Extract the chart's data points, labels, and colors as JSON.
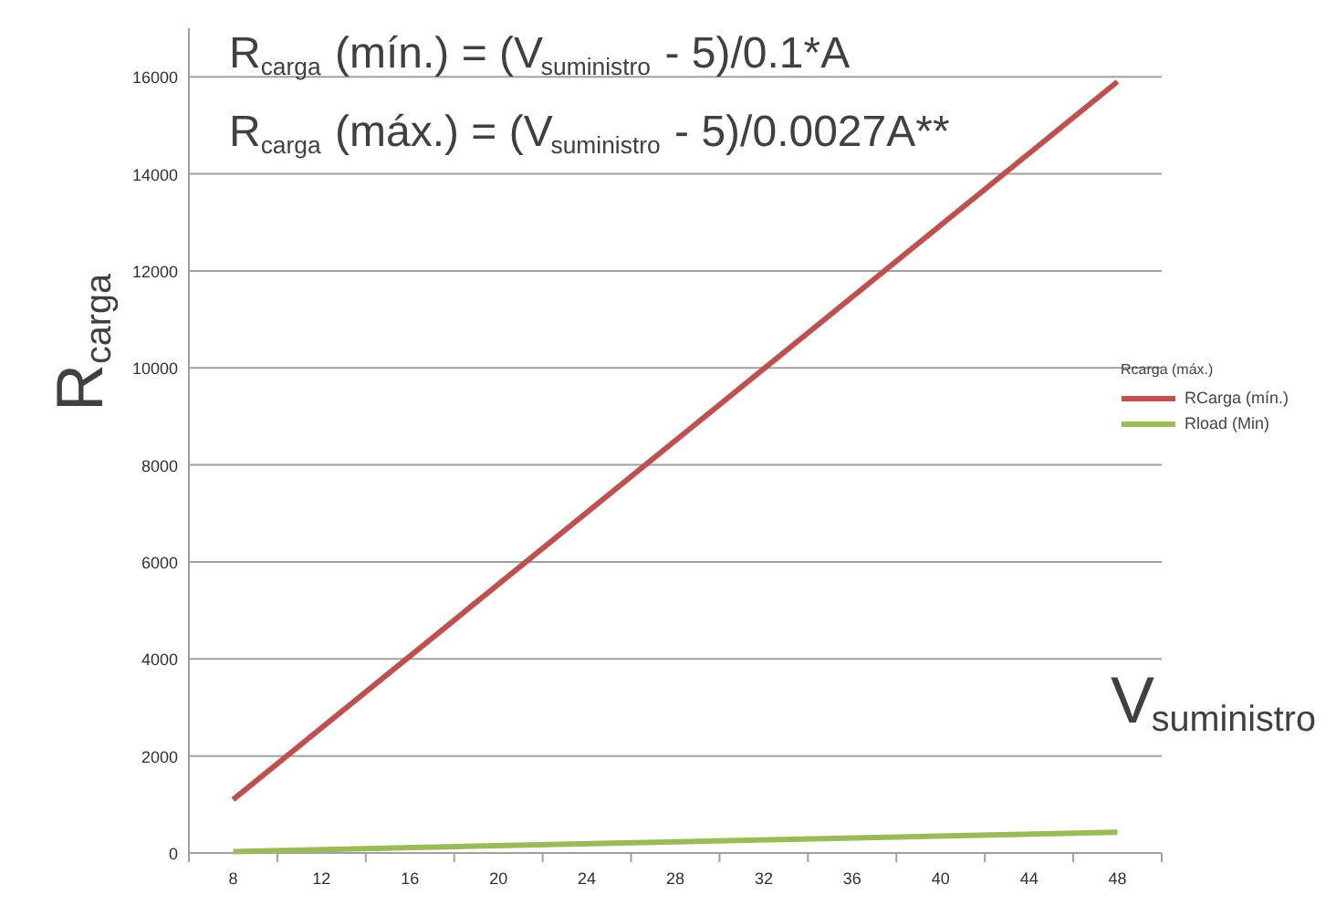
{
  "chart_data": {
    "type": "line",
    "annotations": [
      "R$_{carga}$ (mín.) = (V$_{suministro}$ - 5)/0.1*A",
      "R$_{carga}$ (máx.) = (V$_{suministro}$ - 5)/0.0027A**"
    ],
    "xlabel": "V$_{suministro}$",
    "ylabel": "R$_{carga}$",
    "legend_title": "Rcarga (máx.)",
    "series": [
      {
        "name": "RCarga (mín.)",
        "color": "#c0504d",
        "values": [
          1100,
          15900
        ]
      },
      {
        "name": "Rload (Min)",
        "color": "#9bbb59",
        "values": [
          30,
          430
        ]
      }
    ],
    "x": [
      8,
      48
    ],
    "xlim": [
      6,
      50
    ],
    "ylim": [
      0,
      17000
    ],
    "xticks": [
      {
        "value": 6,
        "label": null
      },
      8,
      {
        "value": 10,
        "label": null
      },
      12,
      {
        "value": 14,
        "label": null
      },
      16,
      {
        "value": 18,
        "label": null
      },
      20,
      {
        "value": 22,
        "label": null
      },
      24,
      {
        "value": 26,
        "label": null
      },
      28,
      {
        "value": 30,
        "label": null
      },
      32,
      {
        "value": 34,
        "label": null
      },
      36,
      {
        "value": 38,
        "label": null
      },
      40,
      {
        "value": 42,
        "label": null
      },
      44,
      {
        "value": 46,
        "label": null
      },
      48,
      {
        "value": 50,
        "label": null
      }
    ],
    "yticks": [
      0,
      2000,
      4000,
      6000,
      8000,
      10000,
      12000,
      14000,
      16000
    ],
    "grid": "y",
    "legend": "right",
    "marker": "none",
    "line_style": "solid"
  }
}
